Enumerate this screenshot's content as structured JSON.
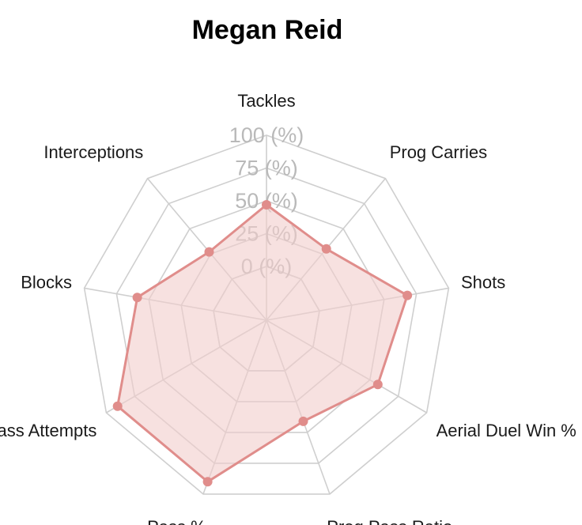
{
  "chart_data": {
    "type": "radar",
    "title": "Megan Reid",
    "axes": [
      "Tackles",
      "Prog Carries",
      "Shots",
      "Aerial Duel Win %",
      "Prog Pass Ratio",
      "Pass %",
      "Pass Attempts",
      "Blocks",
      "Interceptions"
    ],
    "grid_labels": [
      "0 (%)",
      "25 (%)",
      "50 (%)",
      "75 (%)",
      "100 (%)"
    ],
    "grid_values": [
      0,
      25,
      50,
      75,
      100
    ],
    "range": [
      0,
      100
    ],
    "series": [
      {
        "values": [
          47,
          30,
          68,
          57,
          41,
          90,
          90,
          59,
          27
        ],
        "color": "#e08d8b",
        "fill": "#f2cdcc"
      }
    ]
  }
}
